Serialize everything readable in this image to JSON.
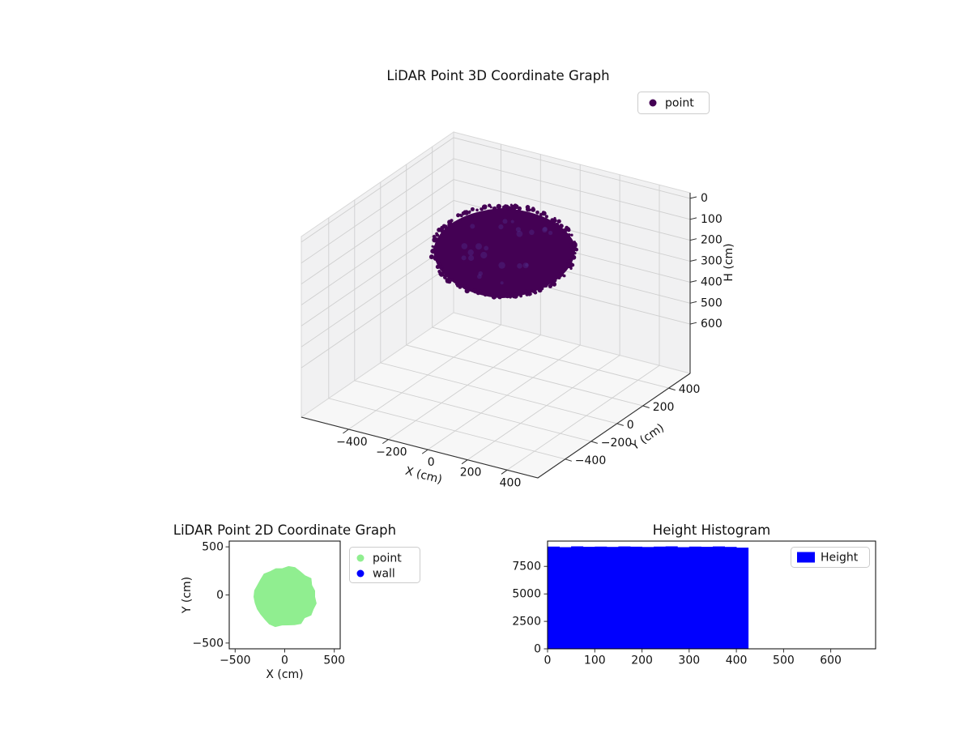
{
  "figure": {
    "background": "#ffffff"
  },
  "chart_data": [
    {
      "type": "scatter3d",
      "title": "LiDAR Point 3D Coordinate Graph",
      "xlabel": "X (cm)",
      "ylabel": "Y (cm)",
      "zlabel": "H (cm)",
      "xticks": [
        -400,
        -200,
        0,
        200,
        400
      ],
      "yticks": [
        -400,
        -200,
        0,
        200,
        400
      ],
      "zticks": [
        0,
        100,
        200,
        300,
        400,
        500,
        600
      ],
      "xtick_labels": [
        "−400",
        "−200",
        "0",
        "200",
        "400"
      ],
      "ytick_labels": [
        "−400",
        "−200",
        "0",
        "200",
        "400"
      ],
      "ztick_labels": [
        "0",
        "100",
        "200",
        "300",
        "400",
        "500",
        "600"
      ],
      "zaxis_inverted": true,
      "grid": true,
      "legend": [
        {
          "label": "point",
          "color": "#440154",
          "marker": "circle"
        }
      ],
      "series": [
        {
          "name": "point",
          "color": "#440154",
          "shape": "dense bowl/dome shaped point cloud",
          "center_xy_cm": [
            0,
            0
          ],
          "radius_cm": 260,
          "h_range_cm": [
            100,
            380
          ]
        }
      ]
    },
    {
      "type": "scatter",
      "title": "LiDAR Point 2D Coordinate Graph",
      "xlabel": "X (cm)",
      "ylabel": "Y (cm)",
      "xlim": [
        -560,
        560
      ],
      "ylim": [
        -560,
        560
      ],
      "xticks": [
        -500,
        0,
        500
      ],
      "yticks": [
        500,
        0,
        -500
      ],
      "xtick_labels": [
        "−500",
        "0",
        "500"
      ],
      "ytick_labels": [
        "500",
        "0",
        "−500"
      ],
      "grid": false,
      "legend": [
        {
          "label": "point",
          "color": "#90ee90",
          "marker": "circle"
        },
        {
          "label": "wall",
          "color": "#0000ff",
          "marker": "circle"
        }
      ],
      "series": [
        {
          "name": "point",
          "color": "#90ee90",
          "shape": "filled irregular disc",
          "center": [
            5,
            -20
          ],
          "radius_cm": 310
        },
        {
          "name": "wall",
          "color": "#0000ff",
          "shape": "no visible points"
        }
      ]
    },
    {
      "type": "bar",
      "title": "Height Histogram",
      "xlabel": "",
      "ylabel": "",
      "xlim": [
        0,
        695
      ],
      "ylim": [
        0,
        9800
      ],
      "xticks": [
        0,
        100,
        200,
        300,
        400,
        500,
        600
      ],
      "yticks": [
        0,
        2500,
        5000,
        7500
      ],
      "xtick_labels": [
        "0",
        "100",
        "200",
        "300",
        "400",
        "500",
        "600"
      ],
      "ytick_labels": [
        "0",
        "2500",
        "5000",
        "7500"
      ],
      "legend": [
        {
          "label": "Height",
          "color": "#0000ff",
          "marker": "rect"
        }
      ],
      "bin_start": 0,
      "bin_width": 25,
      "values": [
        9300,
        9250,
        9320,
        9280,
        9300,
        9270,
        9310,
        9290,
        9260,
        9300,
        9320,
        9250,
        9300,
        9280,
        9310,
        9270,
        9200
      ]
    }
  ]
}
